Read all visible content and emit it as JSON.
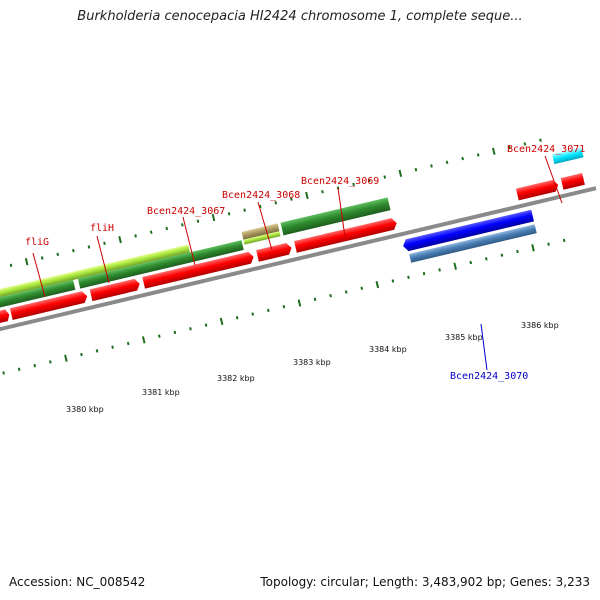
{
  "title": "Burkholderia cenocepacia HI2424 chromosome 1, complete seque...",
  "footer": {
    "accession": "Accession: NC_008542",
    "summary": "Topology: circular; Length: 3,483,902 bp; Genes: 3,233"
  },
  "colors": {
    "red_label": "#cc0000",
    "blue_label": "#0000cc",
    "forward_cds": "#ff0000",
    "reverse_cds": "#0000ff",
    "dark_green": "#2e8b2e",
    "light_green": "#a8e63c",
    "steel_blue": "#4a7fb5",
    "cyan": "#00e5ff",
    "backbone": "#888888"
  },
  "scale_labels": [
    "3380 kbp",
    "3381 kbp",
    "3382 kbp",
    "3383 kbp",
    "3384 kbp",
    "3385 kbp",
    "3386 kbp"
  ],
  "gene_labels": [
    {
      "text": "fliG",
      "color": "red"
    },
    {
      "text": "fliH",
      "color": "red"
    },
    {
      "text": "Bcen2424_3067",
      "color": "red"
    },
    {
      "text": "Bcen2424_3068",
      "color": "red"
    },
    {
      "text": "Bcen2424_3069",
      "color": "red"
    },
    {
      "text": "Bcen2424_3071",
      "color": "red"
    },
    {
      "text": "Bcen2424_3070",
      "color": "blue"
    }
  ]
}
